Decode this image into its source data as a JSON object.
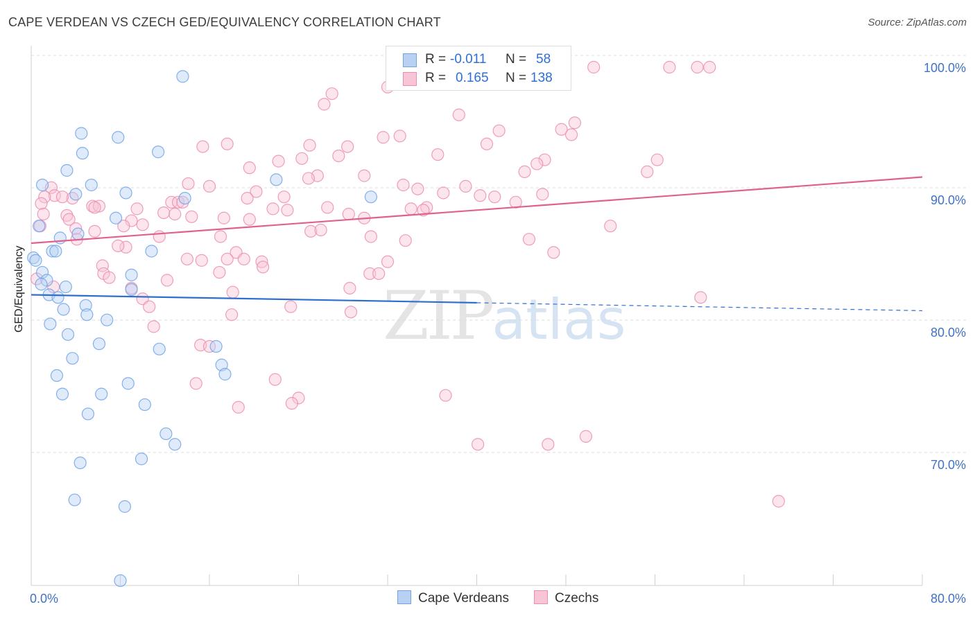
{
  "header": {
    "title": "CAPE VERDEAN VS CZECH GED/EQUIVALENCY CORRELATION CHART",
    "source": "Source: ZipAtlas.com"
  },
  "watermark": {
    "zip": "ZIP",
    "atlas": "atlas"
  },
  "legend": {
    "rows": [
      {
        "r_label": "R =",
        "r_value": "-0.011",
        "n_label": "N =",
        "n_value": "58",
        "color": "#6fa3e8",
        "fill": "#b8d1f3"
      },
      {
        "r_label": "R =",
        "r_value": "0.165",
        "n_label": "N =",
        "n_value": "138",
        "color": "#ec8db0",
        "fill": "#f8c5d6"
      }
    ],
    "bottom": [
      "Cape Verdeans",
      "Czechs"
    ]
  },
  "colors": {
    "blue_stroke": "#6fa3e8",
    "blue_fill": "#b8d1f3",
    "blue_line": "#2e6fd0",
    "pink_stroke": "#ec8db0",
    "pink_fill": "#f8c5d6",
    "pink_line": "#e2608f",
    "tick_text": "#3d72c8",
    "grid": "#dcdcdc"
  },
  "chart_data": {
    "type": "scatter",
    "title": "CAPE VERDEAN VS CZECH GED/EQUIVALENCY CORRELATION CHART",
    "xlabel": "",
    "ylabel": "GED/Equivalency",
    "xlim": [
      0,
      80
    ],
    "ylim": [
      61,
      102
    ],
    "x_tick_labels": [
      {
        "value": 0,
        "label": "0.0%"
      },
      {
        "value": 80,
        "label": "80.0%"
      }
    ],
    "y_tick_labels": [
      {
        "value": 100,
        "label": "100.0%"
      },
      {
        "value": 90,
        "label": "90.0%"
      },
      {
        "value": 80,
        "label": "80.0%"
      },
      {
        "value": 70,
        "label": "70.0%"
      }
    ],
    "grid": "horizontal dashed",
    "legend_position": "top-center",
    "series": [
      {
        "name": "Cape Verdeans",
        "trend": {
          "x": [
            0,
            40
          ],
          "y": [
            82.8,
            82.2
          ],
          "dashed_to": [
            80,
            81.6
          ]
        },
        "points": [
          [
            13.6,
            99.3
          ],
          [
            4.5,
            95.0
          ],
          [
            7.8,
            94.7
          ],
          [
            4.6,
            93.5
          ],
          [
            11.4,
            93.6
          ],
          [
            3.2,
            92.2
          ],
          [
            1.0,
            91.1
          ],
          [
            5.4,
            91.1
          ],
          [
            8.5,
            90.5
          ],
          [
            4.0,
            90.4
          ],
          [
            13.8,
            90.1
          ],
          [
            30.5,
            90.2
          ],
          [
            22.0,
            91.5
          ],
          [
            7.6,
            88.6
          ],
          [
            0.7,
            88.0
          ],
          [
            4.2,
            87.4
          ],
          [
            2.6,
            87.1
          ],
          [
            1.9,
            86.1
          ],
          [
            2.2,
            86.1
          ],
          [
            10.8,
            86.1
          ],
          [
            0.2,
            85.6
          ],
          [
            0.4,
            85.4
          ],
          [
            1.0,
            84.5
          ],
          [
            9.0,
            84.3
          ],
          [
            1.4,
            83.9
          ],
          [
            0.9,
            83.6
          ],
          [
            3.1,
            83.4
          ],
          [
            9.0,
            83.2
          ],
          [
            1.6,
            82.8
          ],
          [
            2.4,
            82.6
          ],
          [
            4.9,
            82.0
          ],
          [
            2.9,
            81.7
          ],
          [
            5.0,
            81.3
          ],
          [
            6.8,
            80.9
          ],
          [
            1.7,
            80.6
          ],
          [
            3.3,
            79.8
          ],
          [
            6.1,
            79.1
          ],
          [
            11.5,
            78.7
          ],
          [
            16.6,
            78.9
          ],
          [
            3.7,
            78.0
          ],
          [
            17.1,
            77.5
          ],
          [
            17.4,
            76.8
          ],
          [
            2.3,
            76.7
          ],
          [
            8.7,
            76.1
          ],
          [
            2.8,
            75.3
          ],
          [
            6.3,
            75.3
          ],
          [
            10.2,
            74.5
          ],
          [
            5.1,
            73.8
          ],
          [
            12.1,
            72.3
          ],
          [
            12.9,
            71.5
          ],
          [
            4.4,
            70.1
          ],
          [
            9.9,
            70.4
          ],
          [
            3.9,
            67.3
          ],
          [
            8.4,
            66.8
          ],
          [
            8.0,
            61.2
          ]
        ]
      },
      {
        "name": "Czechs",
        "trend": {
          "x": [
            0,
            80
          ],
          "y": [
            86.7,
            91.7
          ]
        },
        "points": [
          [
            36.5,
            100.0
          ],
          [
            50.5,
            100.0
          ],
          [
            57.3,
            100.0
          ],
          [
            59.8,
            100.0
          ],
          [
            60.9,
            100.0
          ],
          [
            32.0,
            98.5
          ],
          [
            27.0,
            98.0
          ],
          [
            26.3,
            97.2
          ],
          [
            38.4,
            96.4
          ],
          [
            48.8,
            95.8
          ],
          [
            47.6,
            95.3
          ],
          [
            42.0,
            95.2
          ],
          [
            48.5,
            94.9
          ],
          [
            31.6,
            94.7
          ],
          [
            33.1,
            94.8
          ],
          [
            40.9,
            94.2
          ],
          [
            17.6,
            94.2
          ],
          [
            15.4,
            94.0
          ],
          [
            25.0,
            94.1
          ],
          [
            28.4,
            94.0
          ],
          [
            36.5,
            93.4
          ],
          [
            27.6,
            93.3
          ],
          [
            24.3,
            93.1
          ],
          [
            56.2,
            93.0
          ],
          [
            46.1,
            93.0
          ],
          [
            45.4,
            92.7
          ],
          [
            22.2,
            92.9
          ],
          [
            19.6,
            92.4
          ],
          [
            55.3,
            92.1
          ],
          [
            44.3,
            92.1
          ],
          [
            29.9,
            91.8
          ],
          [
            25.7,
            91.8
          ],
          [
            24.9,
            91.6
          ],
          [
            14.1,
            91.2
          ],
          [
            33.4,
            91.1
          ],
          [
            39.0,
            91.0
          ],
          [
            16.0,
            91.0
          ],
          [
            34.7,
            90.8
          ],
          [
            20.2,
            90.6
          ],
          [
            1.8,
            90.9
          ],
          [
            2.1,
            90.3
          ],
          [
            1.2,
            90.2
          ],
          [
            37.0,
            90.5
          ],
          [
            40.3,
            90.3
          ],
          [
            41.6,
            90.2
          ],
          [
            45.9,
            90.4
          ],
          [
            22.7,
            90.2
          ],
          [
            19.4,
            90.1
          ],
          [
            3.7,
            90.1
          ],
          [
            2.8,
            90.2
          ],
          [
            0.9,
            89.7
          ],
          [
            43.5,
            89.8
          ],
          [
            12.6,
            89.8
          ],
          [
            13.2,
            89.8
          ],
          [
            13.6,
            89.8
          ],
          [
            5.5,
            89.5
          ],
          [
            6.1,
            89.5
          ],
          [
            35.5,
            89.4
          ],
          [
            34.1,
            89.3
          ],
          [
            35.2,
            89.2
          ],
          [
            26.6,
            89.4
          ],
          [
            21.7,
            89.3
          ],
          [
            23.0,
            89.2
          ],
          [
            11.9,
            89.0
          ],
          [
            9.5,
            89.3
          ],
          [
            1.1,
            88.9
          ],
          [
            3.2,
            88.8
          ],
          [
            12.9,
            88.9
          ],
          [
            14.4,
            88.7
          ],
          [
            5.7,
            89.4
          ],
          [
            9.0,
            88.4
          ],
          [
            28.5,
            88.9
          ],
          [
            29.9,
            88.6
          ],
          [
            17.3,
            88.6
          ],
          [
            19.6,
            88.5
          ],
          [
            3.4,
            88.5
          ],
          [
            10.0,
            88.1
          ],
          [
            52.0,
            88.0
          ],
          [
            0.8,
            88.0
          ],
          [
            8.3,
            88.0
          ],
          [
            4.0,
            87.8
          ],
          [
            5.7,
            87.6
          ],
          [
            25.1,
            87.6
          ],
          [
            26.0,
            87.7
          ],
          [
            11.5,
            87.2
          ],
          [
            17.0,
            87.2
          ],
          [
            30.5,
            87.2
          ],
          [
            4.1,
            87.0
          ],
          [
            44.7,
            87.0
          ],
          [
            33.6,
            86.9
          ],
          [
            8.5,
            86.4
          ],
          [
            7.8,
            86.5
          ],
          [
            46.9,
            86.0
          ],
          [
            18.4,
            86.0
          ],
          [
            19.1,
            85.5
          ],
          [
            15.3,
            85.4
          ],
          [
            17.6,
            85.5
          ],
          [
            14.0,
            85.5
          ],
          [
            20.7,
            85.3
          ],
          [
            32.0,
            85.3
          ],
          [
            20.8,
            84.9
          ],
          [
            6.4,
            85.0
          ],
          [
            6.5,
            84.4
          ],
          [
            16.9,
            84.5
          ],
          [
            30.4,
            84.4
          ],
          [
            31.2,
            84.4
          ],
          [
            7.0,
            84.1
          ],
          [
            12.2,
            83.9
          ],
          [
            0.5,
            84.0
          ],
          [
            2.0,
            83.4
          ],
          [
            9.0,
            83.3
          ],
          [
            28.6,
            83.3
          ],
          [
            18.1,
            83.0
          ],
          [
            10.0,
            82.5
          ],
          [
            60.1,
            82.6
          ],
          [
            10.6,
            81.9
          ],
          [
            23.3,
            81.9
          ],
          [
            28.7,
            81.5
          ],
          [
            18.0,
            81.3
          ],
          [
            11.0,
            80.4
          ],
          [
            15.2,
            79.0
          ],
          [
            16.0,
            78.9
          ],
          [
            21.9,
            76.4
          ],
          [
            14.8,
            76.1
          ],
          [
            24.0,
            75.0
          ],
          [
            37.2,
            75.2
          ],
          [
            23.4,
            74.6
          ],
          [
            18.6,
            74.3
          ],
          [
            49.8,
            72.1
          ],
          [
            40.1,
            71.5
          ],
          [
            46.4,
            71.5
          ],
          [
            67.1,
            67.2
          ]
        ]
      }
    ]
  }
}
